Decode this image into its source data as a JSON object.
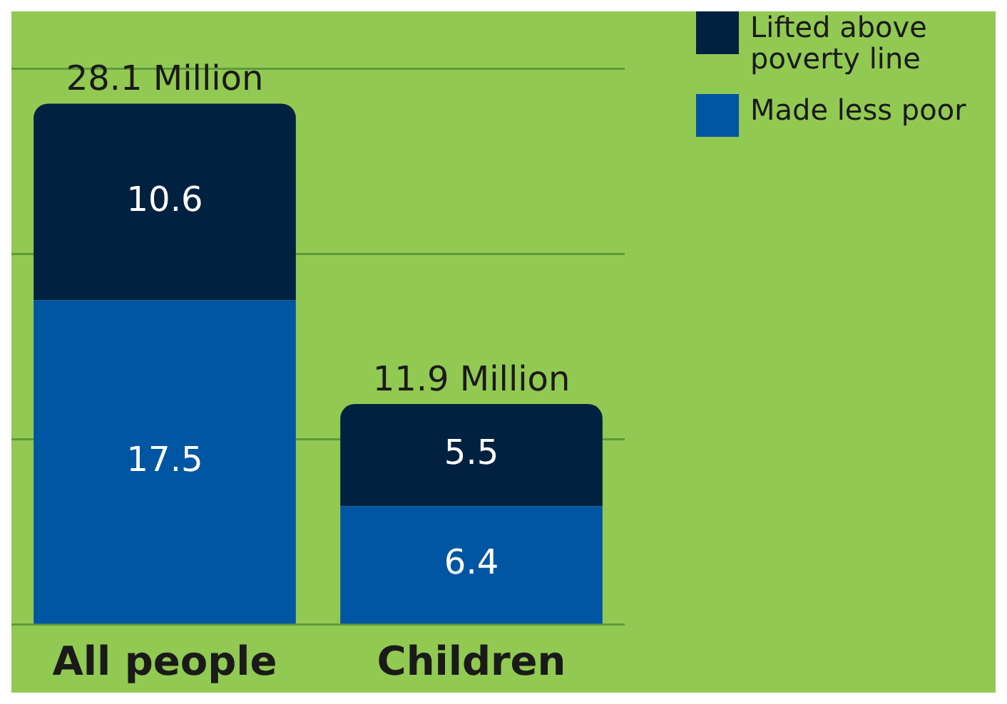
{
  "chart_data": {
    "type": "bar",
    "categories": [
      "All people",
      "Children"
    ],
    "stacked": true,
    "series": [
      {
        "name": "Made less poor",
        "color": "#0056a3",
        "values": [
          17.5,
          6.4
        ]
      },
      {
        "name": "Lifted above poverty line",
        "color": "#00213f",
        "values": [
          10.6,
          5.5
        ]
      }
    ],
    "ylim": [
      0,
      30
    ],
    "yticks": [
      {
        "value": 0,
        "label": null
      },
      {
        "value": 10,
        "label": null
      },
      {
        "value": 20,
        "label": null
      },
      {
        "value": 30,
        "label": null
      }
    ],
    "tick_labels": "x",
    "grid": "y",
    "legend": "top right",
    "data_labels": true,
    "totals": [
      "28.1 Million",
      "11.9 Million"
    ]
  }
}
